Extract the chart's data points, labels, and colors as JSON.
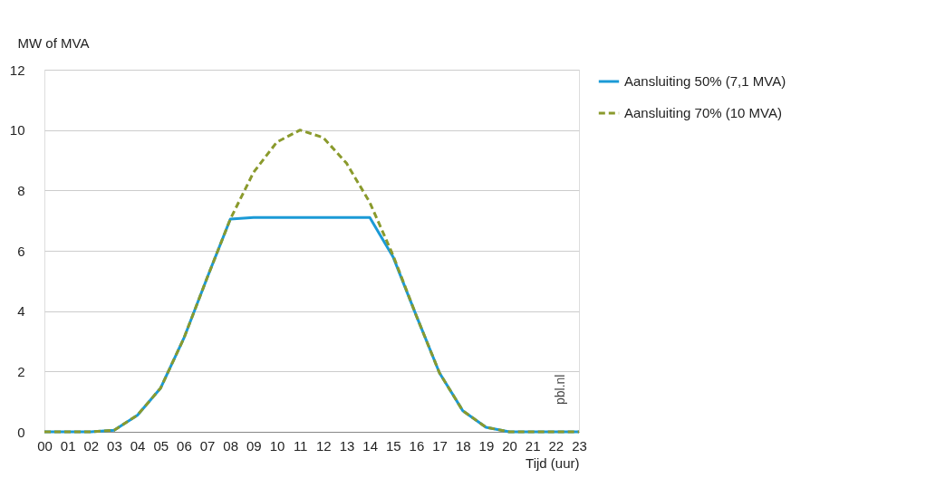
{
  "chart_data": {
    "type": "line",
    "ylabel": "MW of MVA",
    "xlabel": "Tijd (uur)",
    "categories": [
      "00",
      "01",
      "02",
      "03",
      "04",
      "05",
      "06",
      "07",
      "08",
      "09",
      "10",
      "11",
      "12",
      "13",
      "14",
      "15",
      "16",
      "17",
      "18",
      "19",
      "20",
      "21",
      "22",
      "23"
    ],
    "series": [
      {
        "name": "Aansluiting 50% (7,1 MVA)",
        "color": "#1b9ad6",
        "line_style": "solid",
        "values": [
          0,
          0,
          0,
          0.05,
          0.55,
          1.45,
          3.1,
          5.1,
          7.05,
          7.1,
          7.1,
          7.1,
          7.1,
          7.1,
          7.1,
          5.8,
          3.85,
          1.95,
          0.7,
          0.15,
          0,
          0,
          0,
          0
        ]
      },
      {
        "name": "Aansluiting 70% (10 MVA)",
        "color": "#8a9a2c",
        "line_style": "dashed",
        "values": [
          0,
          0,
          0,
          0.05,
          0.55,
          1.45,
          3.1,
          5.1,
          7.05,
          8.6,
          9.6,
          10.0,
          9.75,
          8.9,
          7.6,
          5.85,
          3.85,
          1.95,
          0.7,
          0.15,
          0,
          0,
          0,
          0
        ]
      }
    ],
    "ylim": [
      0,
      12
    ],
    "yticks": [
      0,
      2,
      4,
      6,
      8,
      10,
      12
    ],
    "grid": "y",
    "legend": "top right",
    "marker": "none",
    "annotations": [
      "pbl.nl"
    ]
  }
}
